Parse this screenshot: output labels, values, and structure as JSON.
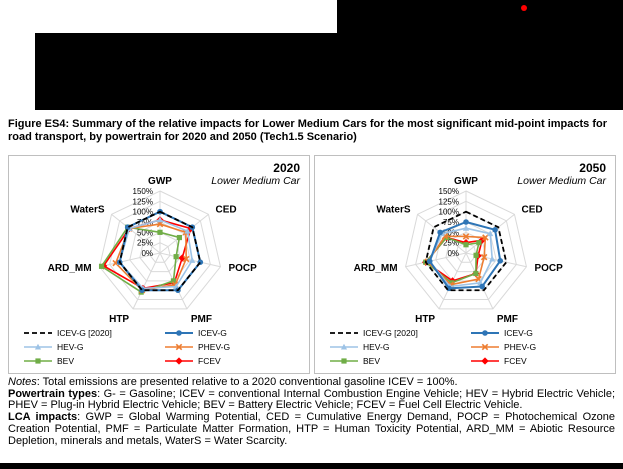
{
  "figure": {
    "caption": "Figure ES4: Summary of the relative impacts for Lower Medium Cars for the most significant mid-point impacts for road transport, by powertrain for 2020 and 2050 (Tech1.5 Scenario)"
  },
  "notes": {
    "notes_label": "Notes",
    "notes_text": ": Total emissions are presented relative to a 2020 conventional gasoline ICEV = 100%.",
    "powertrain_label": "Powertrain types",
    "powertrain_text": ": G- = Gasoline; ICEV = conventional Internal Combustion Engine Vehicle; HEV = Hybrid Electric Vehicle; PHEV = Plug-in Hybrid Electric Vehicle; BEV = Battery Electric Vehicle; FCEV = Fuel Cell Electric Vehicle.",
    "lca_label": "LCA impacts",
    "lca_text": ": GWP = Global Warming Potential, CED = Cumulative Energy Demand, POCP = Photochemical Ozone Creation Potential, PMF = Particulate Matter Formation, HTP = Human Toxicity Potential, ARD_MM = Abiotic Resource Depletion, minerals and metals, WaterS = Water Scarcity."
  },
  "chart_data": [
    {
      "type": "radar",
      "title": "2020",
      "subtitle": "Lower Medium Car",
      "categories": [
        "GWP",
        "CED",
        "POCP",
        "PMF",
        "HTP",
        "ARD_MM",
        "WaterS"
      ],
      "radial_ticks": [
        "150%",
        "125%",
        "100%",
        "75%",
        "50%",
        "25%",
        "0%"
      ],
      "rmax": 150,
      "grid": "on",
      "legend_position": "bottom",
      "series": [
        {
          "name": "ICEV-G [2020]",
          "color": "#000000",
          "dash": "5 3",
          "marker": "none",
          "width": 1.8,
          "values": [
            100,
            100,
            100,
            100,
            100,
            100,
            100
          ]
        },
        {
          "name": "ICEV-G",
          "color": "#2E75B6",
          "marker": "circle",
          "width": 2,
          "values": [
            100,
            100,
            100,
            100,
            100,
            100,
            100
          ]
        },
        {
          "name": "HEV-G",
          "color": "#9DC3E6",
          "marker": "triangle",
          "width": 1.6,
          "values": [
            80,
            85,
            80,
            90,
            95,
            100,
            95
          ]
        },
        {
          "name": "PHEV-G",
          "color": "#ED7D31",
          "marker": "x",
          "width": 1.6,
          "values": [
            70,
            80,
            65,
            85,
            100,
            110,
            95
          ]
        },
        {
          "name": "BEV",
          "color": "#70AD47",
          "marker": "square",
          "width": 1.6,
          "values": [
            50,
            60,
            40,
            75,
            105,
            145,
            100
          ]
        },
        {
          "name": "FCEV",
          "color": "#FF0000",
          "marker": "diamond",
          "width": 1.6,
          "values": [
            80,
            95,
            55,
            80,
            95,
            140,
            95
          ]
        }
      ]
    },
    {
      "type": "radar",
      "title": "2050",
      "subtitle": "Lower Medium Car",
      "categories": [
        "GWP",
        "CED",
        "POCP",
        "PMF",
        "HTP",
        "ARD_MM",
        "WaterS"
      ],
      "radial_ticks": [
        "150%",
        "125%",
        "100%",
        "75%",
        "50%",
        "25%",
        "0%"
      ],
      "rmax": 150,
      "grid": "on",
      "legend_position": "bottom",
      "series": [
        {
          "name": "ICEV-G [2020]",
          "color": "#000000",
          "dash": "5 3",
          "marker": "none",
          "width": 1.8,
          "values": [
            100,
            100,
            100,
            100,
            100,
            100,
            100
          ]
        },
        {
          "name": "ICEV-G",
          "color": "#2E75B6",
          "marker": "circle",
          "width": 2,
          "values": [
            75,
            90,
            85,
            90,
            95,
            90,
            80
          ]
        },
        {
          "name": "HEV-G",
          "color": "#9DC3E6",
          "marker": "triangle",
          "width": 1.6,
          "values": [
            60,
            75,
            65,
            80,
            90,
            90,
            75
          ]
        },
        {
          "name": "PHEV-G",
          "color": "#ED7D31",
          "marker": "x",
          "width": 1.6,
          "values": [
            40,
            60,
            45,
            70,
            85,
            95,
            65
          ]
        },
        {
          "name": "BEV",
          "color": "#70AD47",
          "marker": "square",
          "width": 1.6,
          "values": [
            20,
            40,
            25,
            55,
            80,
            100,
            60
          ]
        },
        {
          "name": "FCEV",
          "color": "#FF0000",
          "marker": "diamond",
          "width": 1.6,
          "values": [
            25,
            50,
            30,
            55,
            75,
            100,
            60
          ]
        }
      ]
    }
  ]
}
